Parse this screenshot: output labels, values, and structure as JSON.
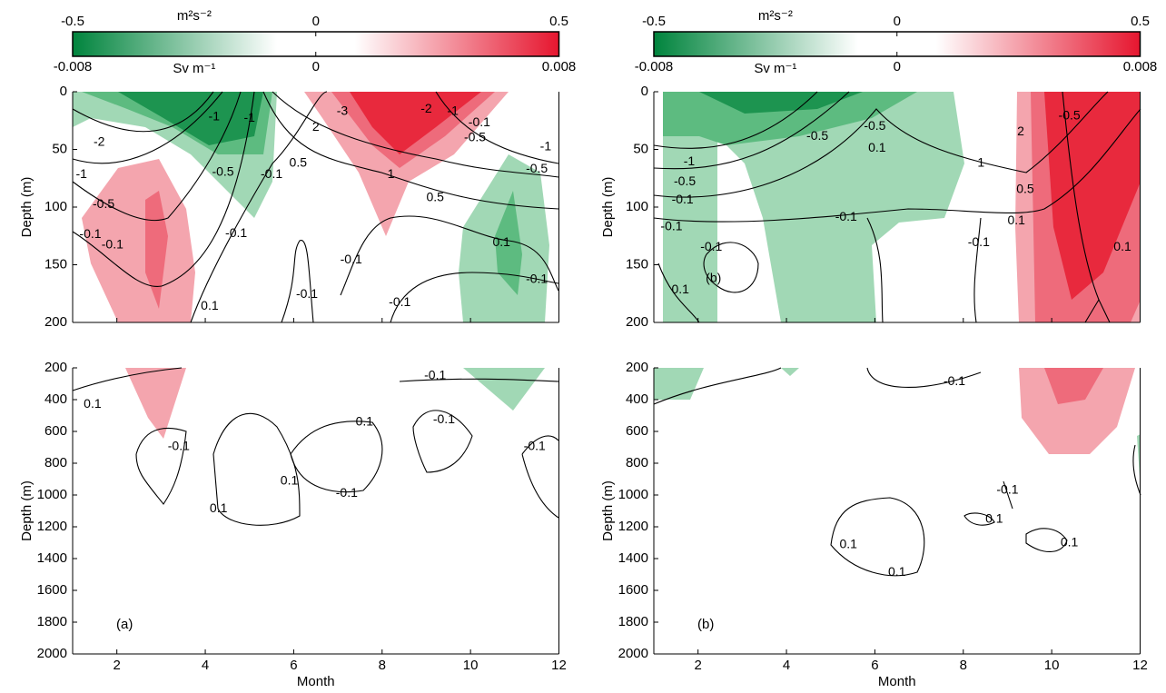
{
  "chart_data": [
    {
      "type": "contour",
      "panel_label": "(a)",
      "colorbar": {
        "label_top": "m²s⁻²",
        "clim_top": [
          -0.5,
          0.5
        ],
        "ticks_top": [
          -0.5,
          0,
          0.5
        ],
        "label_bottom": "Sv m⁻¹",
        "clim_bottom": [
          -0.008,
          0.008
        ],
        "ticks_bottom": [
          -0.008,
          0,
          0.008
        ]
      },
      "xlabel": "Month",
      "xlim": [
        1,
        12
      ],
      "xticks": [
        2,
        4,
        6,
        8,
        10,
        12
      ],
      "upper": {
        "ylabel": "Depth (m)",
        "ylim": [
          0,
          200
        ],
        "yticks": [
          0,
          50,
          100,
          150,
          200
        ],
        "contour_labels": [
          {
            "text": "-2",
            "x": 1.6,
            "y": 44
          },
          {
            "text": "-1",
            "x": 1.2,
            "y": 72
          },
          {
            "text": "-0.5",
            "x": 1.7,
            "y": 98
          },
          {
            "text": "-0.1",
            "x": 1.4,
            "y": 124
          },
          {
            "text": "-0.1",
            "x": 1.9,
            "y": 133
          },
          {
            "text": "-1",
            "x": 4.2,
            "y": 22
          },
          {
            "text": "-0.5",
            "x": 4.4,
            "y": 70
          },
          {
            "text": "-0.1",
            "x": 4.7,
            "y": 123
          },
          {
            "text": "-0.1",
            "x": 5.5,
            "y": 72
          },
          {
            "text": "-1",
            "x": 5.0,
            "y": 23
          },
          {
            "text": "2",
            "x": 6.5,
            "y": 31
          },
          {
            "text": "0.5",
            "x": 6.1,
            "y": 62
          },
          {
            "text": "-0.1",
            "x": 6.3,
            "y": 176
          },
          {
            "text": "0.1",
            "x": 4.1,
            "y": 186
          },
          {
            "text": "-0.1",
            "x": 7.3,
            "y": 146
          },
          {
            "text": "-0.1",
            "x": 8.4,
            "y": 183
          },
          {
            "text": "-3",
            "x": 7.1,
            "y": 17
          },
          {
            "text": "-2",
            "x": 9.0,
            "y": 15
          },
          {
            "text": "-1",
            "x": 9.6,
            "y": 17
          },
          {
            "text": "-0.1",
            "x": 10.2,
            "y": 27
          },
          {
            "text": "-0.5",
            "x": 10.1,
            "y": 40
          },
          {
            "text": "-1",
            "x": 11.7,
            "y": 48
          },
          {
            "text": "-0.5",
            "x": 11.5,
            "y": 67
          },
          {
            "text": "1",
            "x": 8.2,
            "y": 72
          },
          {
            "text": "0.5",
            "x": 9.2,
            "y": 92
          },
          {
            "text": "0.1",
            "x": 10.7,
            "y": 131
          },
          {
            "text": "-0.1",
            "x": 11.5,
            "y": 163
          }
        ]
      },
      "lower": {
        "ylabel": "Depth (m)",
        "ylim": [
          200,
          2000
        ],
        "yticks": [
          200,
          400,
          600,
          800,
          1000,
          1200,
          1400,
          1600,
          1800,
          2000
        ],
        "contour_labels": [
          {
            "text": "-0.1",
            "x": 9.2,
            "y": 251
          },
          {
            "text": "0.1",
            "x": 1.45,
            "y": 429
          },
          {
            "text": "-0.1",
            "x": 3.4,
            "y": 697
          },
          {
            "text": "0.1",
            "x": 7.6,
            "y": 543
          },
          {
            "text": "-0.1",
            "x": 9.4,
            "y": 526
          },
          {
            "text": "-0.1",
            "x": 11.45,
            "y": 697
          },
          {
            "text": "0.1",
            "x": 4.3,
            "y": 1086
          },
          {
            "text": "0.1",
            "x": 5.9,
            "y": 914
          },
          {
            "text": "-0.1",
            "x": 7.2,
            "y": 989
          }
        ]
      }
    },
    {
      "type": "contour",
      "panel_label": "(b)",
      "colorbar": {
        "label_top": "m²s⁻²",
        "clim_top": [
          -0.5,
          0.5
        ],
        "ticks_top": [
          -0.5,
          0,
          0.5
        ],
        "label_bottom": "Sv m⁻¹",
        "clim_bottom": [
          -0.008,
          0.008
        ],
        "ticks_bottom": [
          -0.008,
          0,
          0.008
        ]
      },
      "xlabel": "Month",
      "xlim": [
        1,
        12
      ],
      "xticks": [
        2,
        4,
        6,
        8,
        10,
        12
      ],
      "upper": {
        "ylabel": "Depth (m)",
        "ylim": [
          0,
          200
        ],
        "yticks": [
          0,
          50,
          100,
          150,
          200
        ],
        "contour_labels": [
          {
            "text": "-1",
            "x": 1.8,
            "y": 61
          },
          {
            "text": "-0.5",
            "x": 1.7,
            "y": 78
          },
          {
            "text": "-0.1",
            "x": 1.65,
            "y": 94
          },
          {
            "text": "-0.1",
            "x": 1.4,
            "y": 117
          },
          {
            "text": "-0.1",
            "x": 2.3,
            "y": 135
          },
          {
            "text": "0.1",
            "x": 1.6,
            "y": 172
          },
          {
            "text": "(b)",
            "x": 2.35,
            "y": 162
          },
          {
            "text": "-0.5",
            "x": 4.7,
            "y": 39
          },
          {
            "text": "-0.5",
            "x": 6.0,
            "y": 30
          },
          {
            "text": "0.1",
            "x": 6.05,
            "y": 49
          },
          {
            "text": "-0.1",
            "x": 5.35,
            "y": 109
          },
          {
            "text": "1",
            "x": 8.4,
            "y": 62
          },
          {
            "text": "0.5",
            "x": 9.4,
            "y": 85
          },
          {
            "text": "0.1",
            "x": 9.2,
            "y": 112
          },
          {
            "text": "-0.1",
            "x": 8.35,
            "y": 131
          },
          {
            "text": "2",
            "x": 9.3,
            "y": 35
          },
          {
            "text": "-0.5",
            "x": 10.4,
            "y": 21
          },
          {
            "text": "0.1",
            "x": 11.6,
            "y": 135
          }
        ]
      },
      "lower": {
        "ylabel": "Depth (m)",
        "ylim": [
          200,
          2000
        ],
        "yticks": [
          200,
          400,
          600,
          800,
          1000,
          1200,
          1400,
          1600,
          1800,
          2000
        ],
        "contour_labels": [
          {
            "text": "-0.1",
            "x": 7.8,
            "y": 286
          },
          {
            "text": "0.1",
            "x": 5.4,
            "y": 1314
          },
          {
            "text": "0.1",
            "x": 6.5,
            "y": 1486
          },
          {
            "text": "-0.1",
            "x": 9.0,
            "y": 971
          },
          {
            "text": "0.1",
            "x": 8.7,
            "y": 1154
          },
          {
            "text": "0.1",
            "x": 10.4,
            "y": 1303
          }
        ]
      }
    }
  ]
}
